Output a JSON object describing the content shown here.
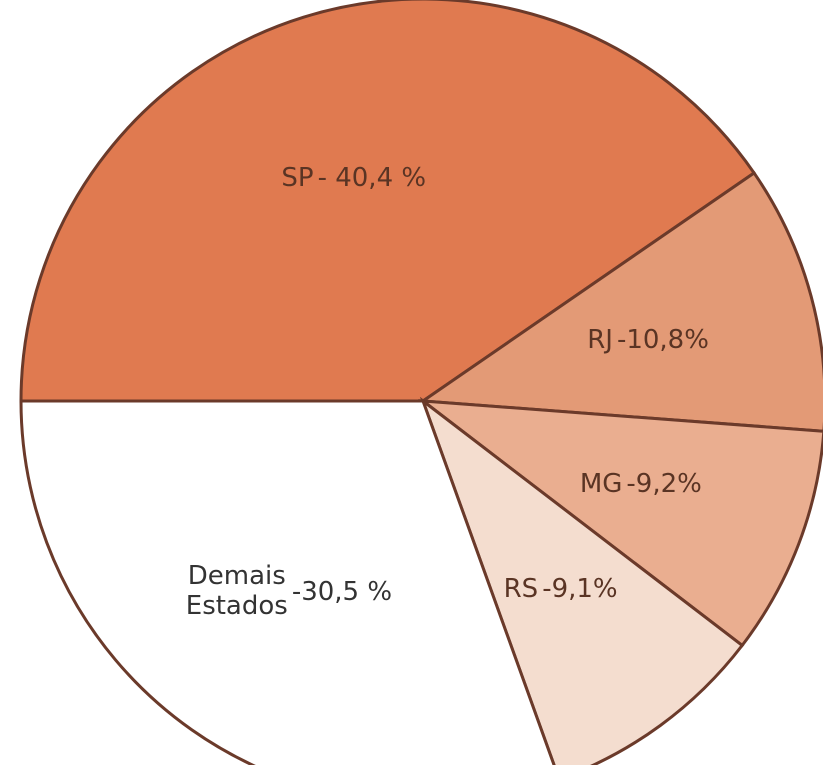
{
  "chart_data": {
    "type": "pie",
    "categories": [
      "SP",
      "RJ",
      "MG",
      "RS",
      "Demais Estados"
    ],
    "values": [
      40.4,
      10.8,
      9.2,
      9.1,
      30.5
    ],
    "value_labels": [
      "- 40,4 %",
      "-10,8%",
      "-9,2%",
      "-9,1%",
      "-30,5 %"
    ],
    "colors": [
      "#e07a50",
      "#e39a76",
      "#eaae90",
      "#f4ddcf",
      "#ffffff"
    ]
  }
}
